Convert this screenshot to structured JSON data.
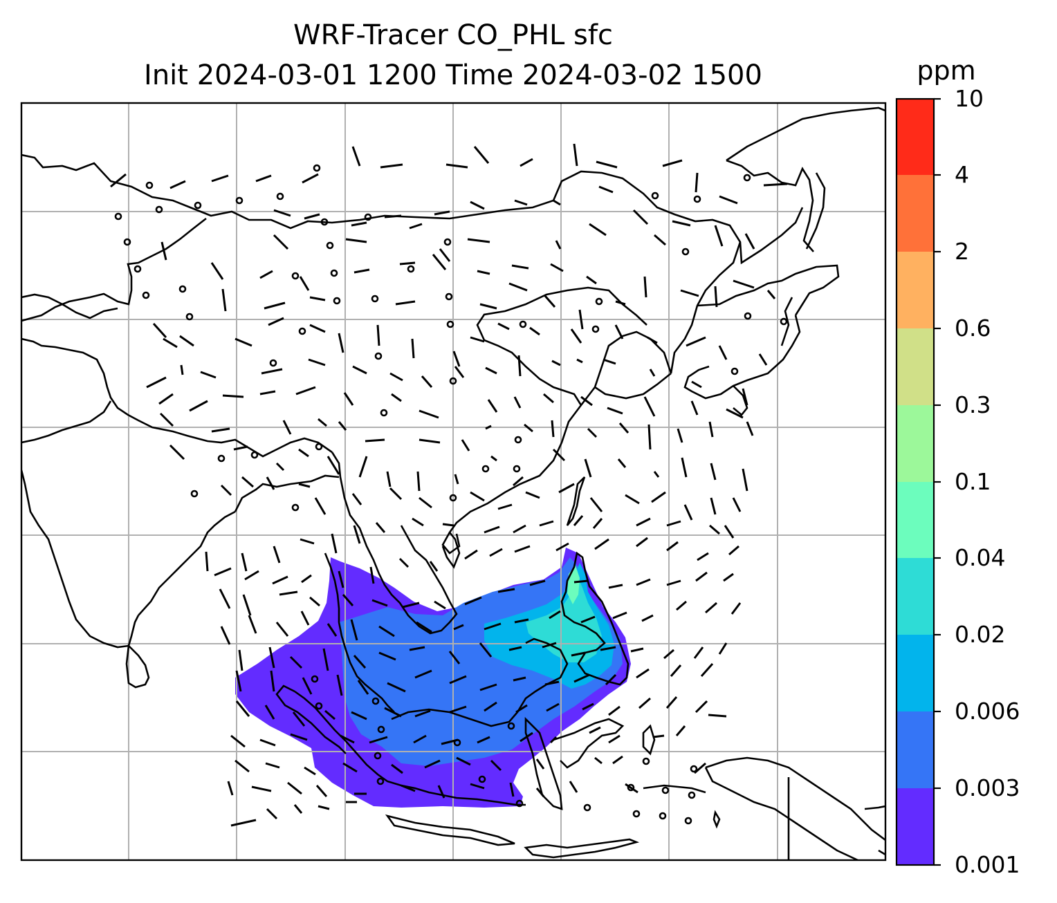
{
  "title": {
    "line1": "WRF-Tracer CO_PHL sfc",
    "line2": "Init 2024-03-01 1200 Time 2024-03-02 1500"
  },
  "colorbar": {
    "unit": "ppm",
    "levels": [
      "0.001",
      "0.003",
      "0.006",
      "0.02",
      "0.04",
      "0.1",
      "0.3",
      "0.6",
      "2",
      "4",
      "10"
    ],
    "colors": [
      "#632cff",
      "#3575f6",
      "#02b4ec",
      "#2edcd6",
      "#6cfdbd",
      "#9cf89a",
      "#d0e088",
      "#ffb160",
      "#ff7139",
      "#ff2b19"
    ]
  },
  "map": {
    "gridlines": true,
    "coastlines": true,
    "wind_barbs": true,
    "plume_region": "Philippines, South China Sea, Borneo, Malay Peninsula, Sumatra"
  }
}
